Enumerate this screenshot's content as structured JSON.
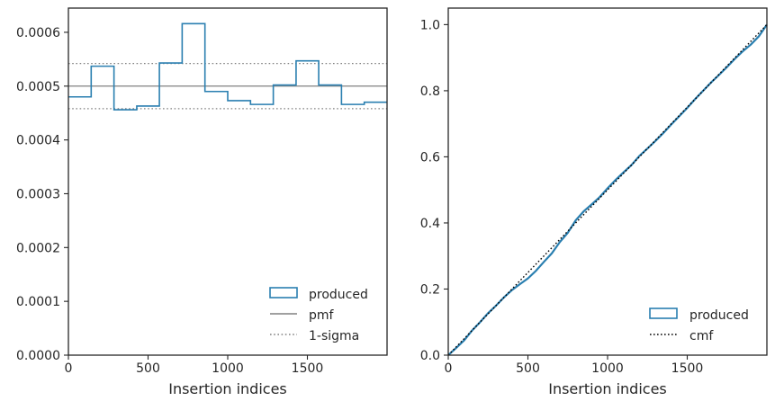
{
  "colors": {
    "produced": "#2a7fb0",
    "pmf": "#808080",
    "sigma": "#808080",
    "cmf": "#000000",
    "axes": "#262626"
  },
  "chart_data": [
    {
      "type": "step-histogram",
      "xlabel": "Insertion indices",
      "ylabel": "",
      "xlim": [
        0,
        2000
      ],
      "ylim": [
        0,
        0.000645
      ],
      "xticks": [
        0,
        500,
        1000,
        1500
      ],
      "yticks": [
        "0.0000",
        "0.0001",
        "0.0002",
        "0.0003",
        "0.0004",
        "0.0005",
        "0.0006"
      ],
      "grid": false,
      "legend_position": "lower-right",
      "bin_edges": [
        0,
        143,
        286,
        429,
        571,
        714,
        857,
        1000,
        1143,
        1286,
        1429,
        1571,
        1714,
        1857,
        2000
      ],
      "series": [
        {
          "name": "produced",
          "style": "step",
          "values": [
            0.00048,
            0.000537,
            0.000456,
            0.000463,
            0.000543,
            0.000616,
            0.00049,
            0.000473,
            0.000466,
            0.000502,
            0.000547,
            0.000502,
            0.000466,
            0.00047
          ]
        }
      ],
      "reference_lines": [
        {
          "name": "pmf",
          "style": "solid",
          "y": 0.0005
        },
        {
          "name": "1-sigma",
          "style": "dotted",
          "y": [
            0.000542,
            0.000458
          ]
        }
      ]
    },
    {
      "type": "line",
      "xlabel": "Insertion indices",
      "ylabel": "",
      "xlim": [
        0,
        2000
      ],
      "ylim": [
        0,
        1.05
      ],
      "xticks": [
        0,
        500,
        1000,
        1500
      ],
      "yticks": [
        "0.0",
        "0.2",
        "0.4",
        "0.6",
        "0.8",
        "1.0"
      ],
      "grid": false,
      "legend_position": "lower-right",
      "series": [
        {
          "name": "produced",
          "style": "solid",
          "x": [
            0,
            50,
            100,
            150,
            200,
            250,
            300,
            350,
            400,
            450,
            500,
            550,
            600,
            650,
            700,
            750,
            800,
            850,
            900,
            950,
            1000,
            1050,
            1100,
            1150,
            1200,
            1250,
            1300,
            1350,
            1400,
            1450,
            1500,
            1550,
            1600,
            1650,
            1700,
            1750,
            1800,
            1850,
            1900,
            1950,
            2000
          ],
          "y": [
            0,
            0.022,
            0.045,
            0.075,
            0.1,
            0.127,
            0.15,
            0.175,
            0.197,
            0.215,
            0.232,
            0.255,
            0.282,
            0.308,
            0.342,
            0.37,
            0.408,
            0.435,
            0.456,
            0.478,
            0.505,
            0.53,
            0.553,
            0.575,
            0.603,
            0.625,
            0.648,
            0.672,
            0.698,
            0.723,
            0.748,
            0.775,
            0.8,
            0.825,
            0.848,
            0.872,
            0.897,
            0.92,
            0.94,
            0.965,
            1.0
          ]
        },
        {
          "name": "cmf",
          "style": "dotted",
          "x": [
            0,
            2000
          ],
          "y": [
            0,
            1.0
          ]
        }
      ]
    }
  ]
}
